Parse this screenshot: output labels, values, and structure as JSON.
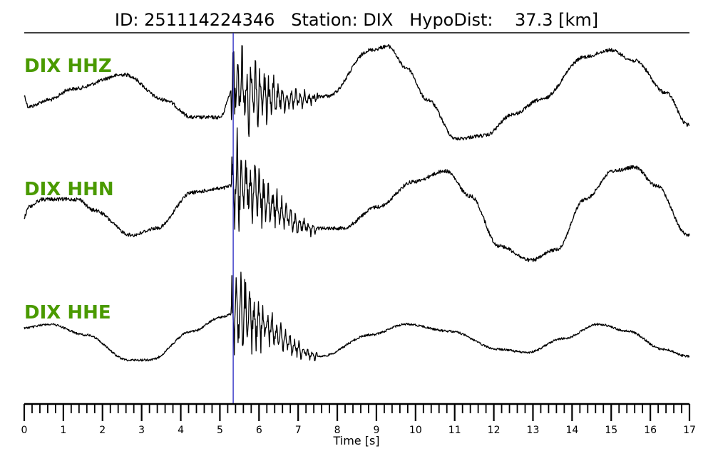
{
  "chart_data": {
    "type": "line",
    "title": "ID: 251114224346   Station: DIX   HypoDist:    37.3 [km]",
    "xlabel": "Time [s]",
    "xlim": [
      0,
      17
    ],
    "xticks": [
      "0",
      "1",
      "2",
      "3",
      "4",
      "5",
      "6",
      "7",
      "8",
      "9",
      "10",
      "11",
      "12",
      "13",
      "14",
      "15",
      "16",
      "17"
    ],
    "minor_tick_step": 0.2,
    "pick_time": 5.34,
    "label_color": "#4a9a00",
    "trace_color": "#000000",
    "pick_color": "#2020c0",
    "series": [
      {
        "name": "DIX HHZ",
        "t": [
          0,
          0.1,
          0.65,
          1.2,
          2.57,
          3.57,
          4.3,
          5.0,
          5.34,
          7.0,
          7.76,
          8.85,
          9.3,
          9.76,
          10.3,
          11.04,
          11.77,
          12.5,
          13.2,
          14.33,
          14.97,
          15.6,
          16.4,
          16.96
        ],
        "amplitude": [
          0.07,
          -0.13,
          0,
          0.2,
          0.47,
          0,
          -0.33,
          -0.33,
          0.2,
          0,
          0.07,
          0.93,
          1.0,
          0.6,
          0,
          -0.73,
          -0.67,
          -0.27,
          0,
          0.8,
          0.93,
          0.73,
          0.13,
          -0.47
        ]
      },
      {
        "name": "DIX HHN",
        "t": [
          0,
          0.1,
          0.47,
          1.39,
          1.75,
          2.75,
          3.39,
          4.3,
          5.0,
          5.34,
          7.4,
          8.12,
          9.04,
          9.94,
          10.77,
          11.4,
          12.13,
          12.95,
          13.6,
          14.33,
          15.05,
          15.6,
          16.15,
          16.96
        ],
        "amplitude": [
          -0.07,
          0.13,
          0.27,
          0.27,
          0.07,
          -0.4,
          -0.27,
          0.4,
          0.47,
          0.53,
          -0.27,
          -0.27,
          0.13,
          0.6,
          0.8,
          0.33,
          -0.6,
          -0.87,
          -0.67,
          0.27,
          0.8,
          0.87,
          0.53,
          -0.4
        ]
      },
      {
        "name": "DIX HHE",
        "t": [
          0,
          0.65,
          1.57,
          2.66,
          3.21,
          4.3,
          5.03,
          5.34,
          7.58,
          8.85,
          9.76,
          10.86,
          12.13,
          12.86,
          13.77,
          14.68,
          15.42,
          16.33,
          16.96
        ],
        "amplitude": [
          0.13,
          0.2,
          0,
          -0.47,
          -0.47,
          0.07,
          0.33,
          0.4,
          -0.4,
          0,
          0.2,
          0.07,
          -0.27,
          -0.33,
          -0.07,
          0.2,
          0.07,
          -0.27,
          -0.4
        ]
      }
    ]
  }
}
